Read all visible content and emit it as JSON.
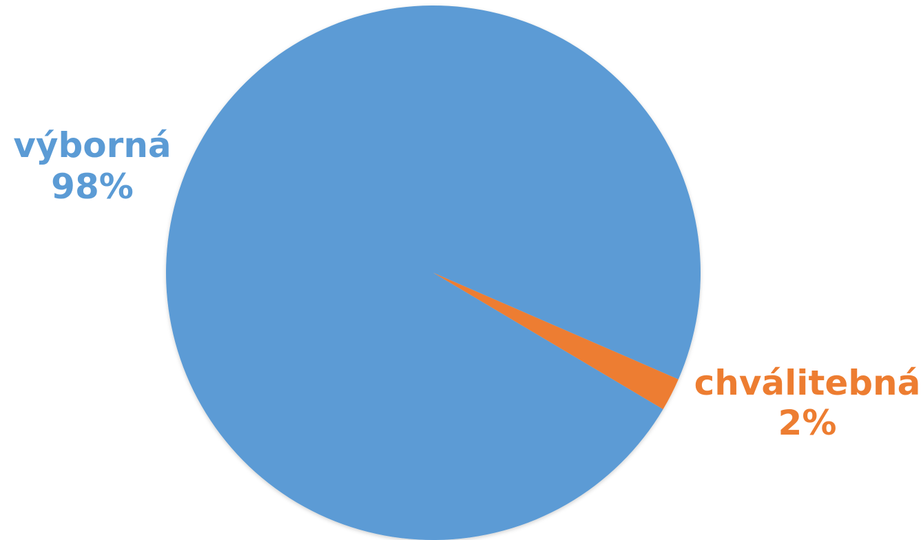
{
  "chart_data": {
    "type": "pie",
    "categories": [
      "výborná",
      "chválitebná"
    ],
    "values": [
      98,
      2
    ],
    "value_labels": [
      "98%",
      "2%"
    ],
    "colors": [
      "#5B9BD5",
      "#ED7D31"
    ],
    "start_angle_deg": -23.5,
    "direction": "counterclockwise",
    "legend": "none",
    "data_labels": "outside"
  }
}
